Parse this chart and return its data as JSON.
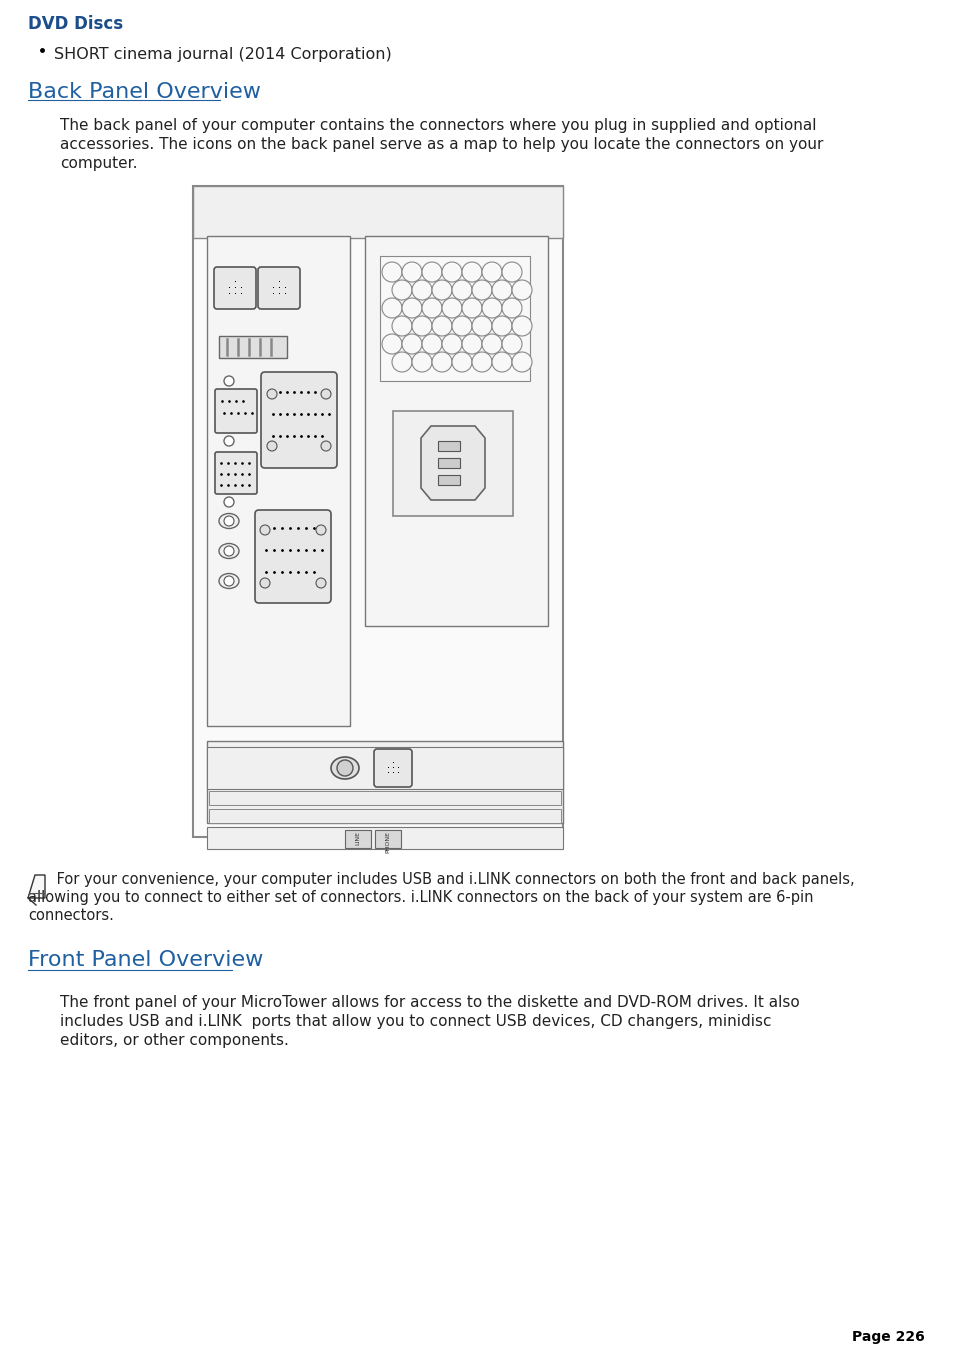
{
  "bg_color": "#ffffff",
  "title_color": "#2060a0",
  "dvd_heading": "DVD Discs",
  "bullet_text": "SHORT cinema journal (2014 Corporation)",
  "back_panel_heading": "Back Panel Overview",
  "back_panel_body1": "The back panel of your computer contains the connectors where you plug in supplied and optional",
  "back_panel_body2": "accessories. The icons on the back panel serve as a map to help you locate the connectors on your",
  "back_panel_body3": "computer.",
  "note_text1": " For your convenience, your computer includes USB and i.LINK connectors on both the front and back panels,",
  "note_text2": "allowing you to connect to either set of connectors. i.LINK connectors on the back of your system are 6-pin",
  "note_text3": "connectors.",
  "front_panel_heading": "Front Panel Overview",
  "front_panel_body1": "The front panel of your MicroTower allows for access to the diskette and DVD-ROM drives. It also",
  "front_panel_body2": "includes USB and i.LINK  ports that allow you to connect USB devices, CD changers, minidisc",
  "front_panel_body3": "editors, or other components.",
  "page_number": "Page 226"
}
